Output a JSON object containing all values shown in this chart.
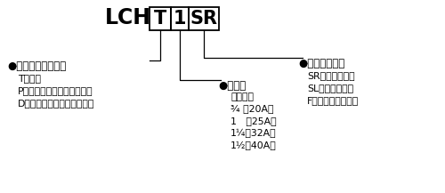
{
  "title_lch": "LCH",
  "box1": "T",
  "box2": "1",
  "box3": "SR",
  "section1_header": "●流路及び内管方式",
  "section1_items": [
    "T：単式",
    "P：複式（内管固定タイプ）",
    "D：複式（内管回転タイプ）"
  ],
  "section2_header": "●サイズ",
  "section2_sub": "呼称寸法",
  "section2_items": [
    "¾ （20A）",
    "1   （25A）",
    "1¼（32A）",
    "1½（40A）"
  ],
  "section3_header": "●取り合い形状",
  "section3_items": [
    "SR：右ネジ取付",
    "SL：左ネジ取付",
    "F　：フランジ取付"
  ],
  "bg_color": "#ffffff",
  "text_color": "#000000"
}
